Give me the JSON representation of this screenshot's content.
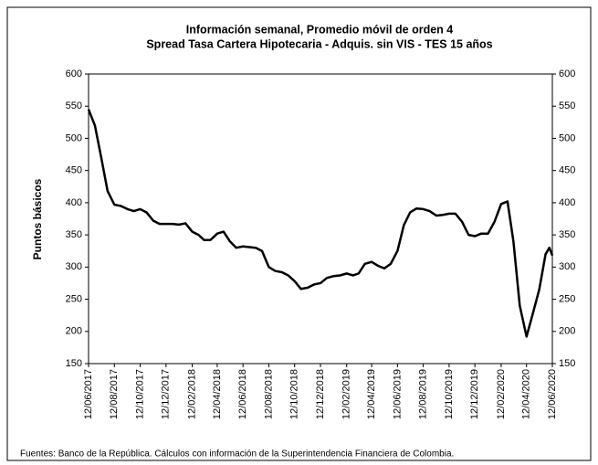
{
  "chart_data": {
    "type": "line",
    "title": "Información semanal, Promedio móvil de orden 4",
    "subtitle": "Spread Tasa Cartera Hipotecaria - Adquis. sin VIS -  TES 15 años",
    "y_label": "Puntos básicos",
    "source": "Fuentes: Banco de la República. Cálculos con información de la Superintendencia Financiera de Colombia.",
    "x": [
      "12/06/2017",
      "27/06/2017",
      "12/07/2017",
      "27/07/2017",
      "12/08/2017",
      "27/08/2017",
      "12/09/2017",
      "27/09/2017",
      "12/10/2017",
      "27/10/2017",
      "12/11/2017",
      "27/11/2017",
      "12/12/2017",
      "27/12/2017",
      "12/01/2018",
      "27/01/2018",
      "12/02/2018",
      "27/02/2018",
      "12/03/2018",
      "27/03/2018",
      "12/04/2018",
      "27/04/2018",
      "12/05/2018",
      "27/05/2018",
      "12/06/2018",
      "27/06/2018",
      "12/07/2018",
      "27/07/2018",
      "12/08/2018",
      "27/08/2018",
      "12/09/2018",
      "27/09/2018",
      "12/10/2018",
      "27/10/2018",
      "12/11/2018",
      "27/11/2018",
      "12/12/2018",
      "27/12/2018",
      "12/01/2019",
      "27/01/2019",
      "12/02/2019",
      "27/02/2019",
      "12/03/2019",
      "27/03/2019",
      "12/04/2019",
      "27/04/2019",
      "12/05/2019",
      "27/05/2019",
      "12/06/2019",
      "27/06/2019",
      "12/07/2019",
      "27/07/2019",
      "12/08/2019",
      "27/08/2019",
      "12/09/2019",
      "27/09/2019",
      "12/10/2019",
      "27/10/2019",
      "12/11/2019",
      "27/11/2019",
      "12/12/2019",
      "27/12/2019",
      "12/01/2020",
      "27/01/2020",
      "12/02/2020",
      "27/02/2020",
      "12/03/2020",
      "27/03/2020",
      "12/04/2020",
      "27/04/2020",
      "12/05/2020",
      "27/05/2020",
      "05/06/2020",
      "12/06/2020"
    ],
    "series": [
      {
        "name": "Spread",
        "color": "#000000",
        "values": [
          545,
          520,
          470,
          418,
          397,
          395,
          390,
          387,
          390,
          385,
          372,
          367,
          367,
          367,
          366,
          368,
          355,
          350,
          342,
          342,
          352,
          355,
          340,
          330,
          332,
          331,
          330,
          325,
          300,
          294,
          292,
          287,
          278,
          266,
          268,
          273,
          275,
          283,
          286,
          287,
          290,
          287,
          290,
          305,
          308,
          302,
          298,
          305,
          325,
          365,
          385,
          391,
          390,
          387,
          380,
          381,
          383,
          383,
          370,
          350,
          348,
          352,
          352,
          370,
          398,
          402,
          340,
          240,
          192,
          228,
          265,
          320,
          330,
          318
        ]
      }
    ],
    "xticks": [
      "12/06/2017",
      "12/08/2017",
      "12/10/2017",
      "12/12/2017",
      "12/02/2018",
      "12/04/2018",
      "12/06/2018",
      "12/08/2018",
      "12/10/2018",
      "12/12/2018",
      "12/02/2019",
      "12/04/2019",
      "12/06/2019",
      "12/08/2019",
      "12/10/2019",
      "12/12/2019",
      "12/02/2020",
      "12/04/2020",
      "12/06/2020"
    ],
    "ylim": [
      150,
      600
    ],
    "yticks": [
      150,
      200,
      250,
      300,
      350,
      400,
      450,
      500,
      550,
      600
    ],
    "grid": false
  }
}
